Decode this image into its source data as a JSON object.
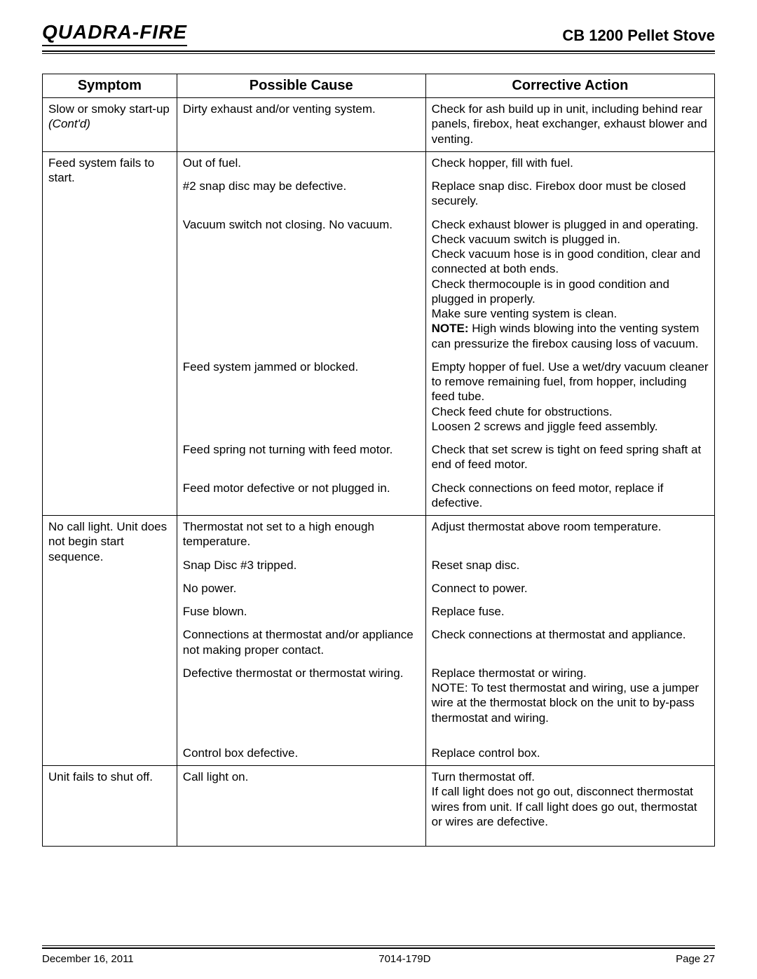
{
  "header": {
    "brand": "Quadra-Fire",
    "product": "CB 1200 Pellet Stove"
  },
  "columns": {
    "symptom": "Symptom",
    "cause": "Possible Cause",
    "action": "Corrective Action"
  },
  "contd": "(Cont'd)",
  "sections": [
    {
      "symptom": "Slow or smoky start-up",
      "contd": true,
      "rows": [
        {
          "cause": "Dirty exhaust and/or venting system.",
          "action": "Check for ash build up in unit, including behind rear panels, firebox, heat exchanger, exhaust blower and venting."
        }
      ]
    },
    {
      "symptom": "Feed system fails to start.",
      "rows": [
        {
          "cause": "Out of fuel.",
          "action": "Check hopper, fill with fuel."
        },
        {
          "cause": "#2 snap disc may be defective.",
          "action": "Replace snap disc.  Firebox door must be closed securely."
        },
        {
          "cause": "Vacuum switch not closing.  No vacuum.",
          "action_html": "Check exhaust blower is plugged in and operating.<br>Check vacuum switch is plugged in.<br>Check vacuum hose is in good condition, clear and connected at both ends.<br>Check thermocouple is in good condition and plugged in properly.<br>Make sure venting system is clean.<br><span class=\"note-bold\">NOTE:</span>  High winds blowing into the venting system can pressurize the firebox causing loss of vacuum."
        },
        {
          "cause": "Feed system jammed or blocked.",
          "action_html": "Empty hopper of fuel.  Use a wet/dry vacuum cleaner to remove remaining fuel, from hopper, including feed tube.<br>Check feed chute for obstructions.<br>Loosen 2 screws and jiggle feed assembly."
        },
        {
          "cause": "Feed spring not turning with feed motor.",
          "action": "Check that set screw is tight on feed spring shaft at end of feed motor."
        },
        {
          "cause": "Feed motor defective or not plugged in.",
          "action": "Check connections on feed motor, replace if defective."
        }
      ]
    },
    {
      "symptom": "No call light.  Unit does not begin start sequence.",
      "rows": [
        {
          "cause": "Thermostat not set to a high enough temperature.",
          "action": "Adjust thermostat above room temperature."
        },
        {
          "cause": "Snap Disc #3 tripped.",
          "action": "Reset snap disc."
        },
        {
          "cause": "No power.",
          "action": "Connect to power."
        },
        {
          "cause": "Fuse blown.",
          "action": "Replace fuse."
        },
        {
          "cause": "Connections at thermostat and/or appliance not making proper contact.",
          "action": "Check connections at thermostat and appliance."
        },
        {
          "cause": "Defective thermostat or thermostat wiring.",
          "action_html": "Replace thermostat or wiring.<br>NOTE:  To test thermostat and wiring, use a jumper wire at the thermostat block on the unit to by-pass thermostat and wiring.",
          "extra_space_after": true
        },
        {
          "cause": "Control box defective.",
          "action": "Replace control box."
        }
      ]
    },
    {
      "symptom": "Unit fails to shut off.",
      "rows": [
        {
          "cause": "Call light on.",
          "action_html": "Turn thermostat off.<br>If call light does not go out, disconnect thermostat wires from unit.  If call light does go out, thermostat or wires are defective.",
          "extra_space_after": true
        }
      ]
    }
  ],
  "footer": {
    "date": "December 16, 2011",
    "docnum": "7014-179D",
    "page": "Page  27"
  }
}
